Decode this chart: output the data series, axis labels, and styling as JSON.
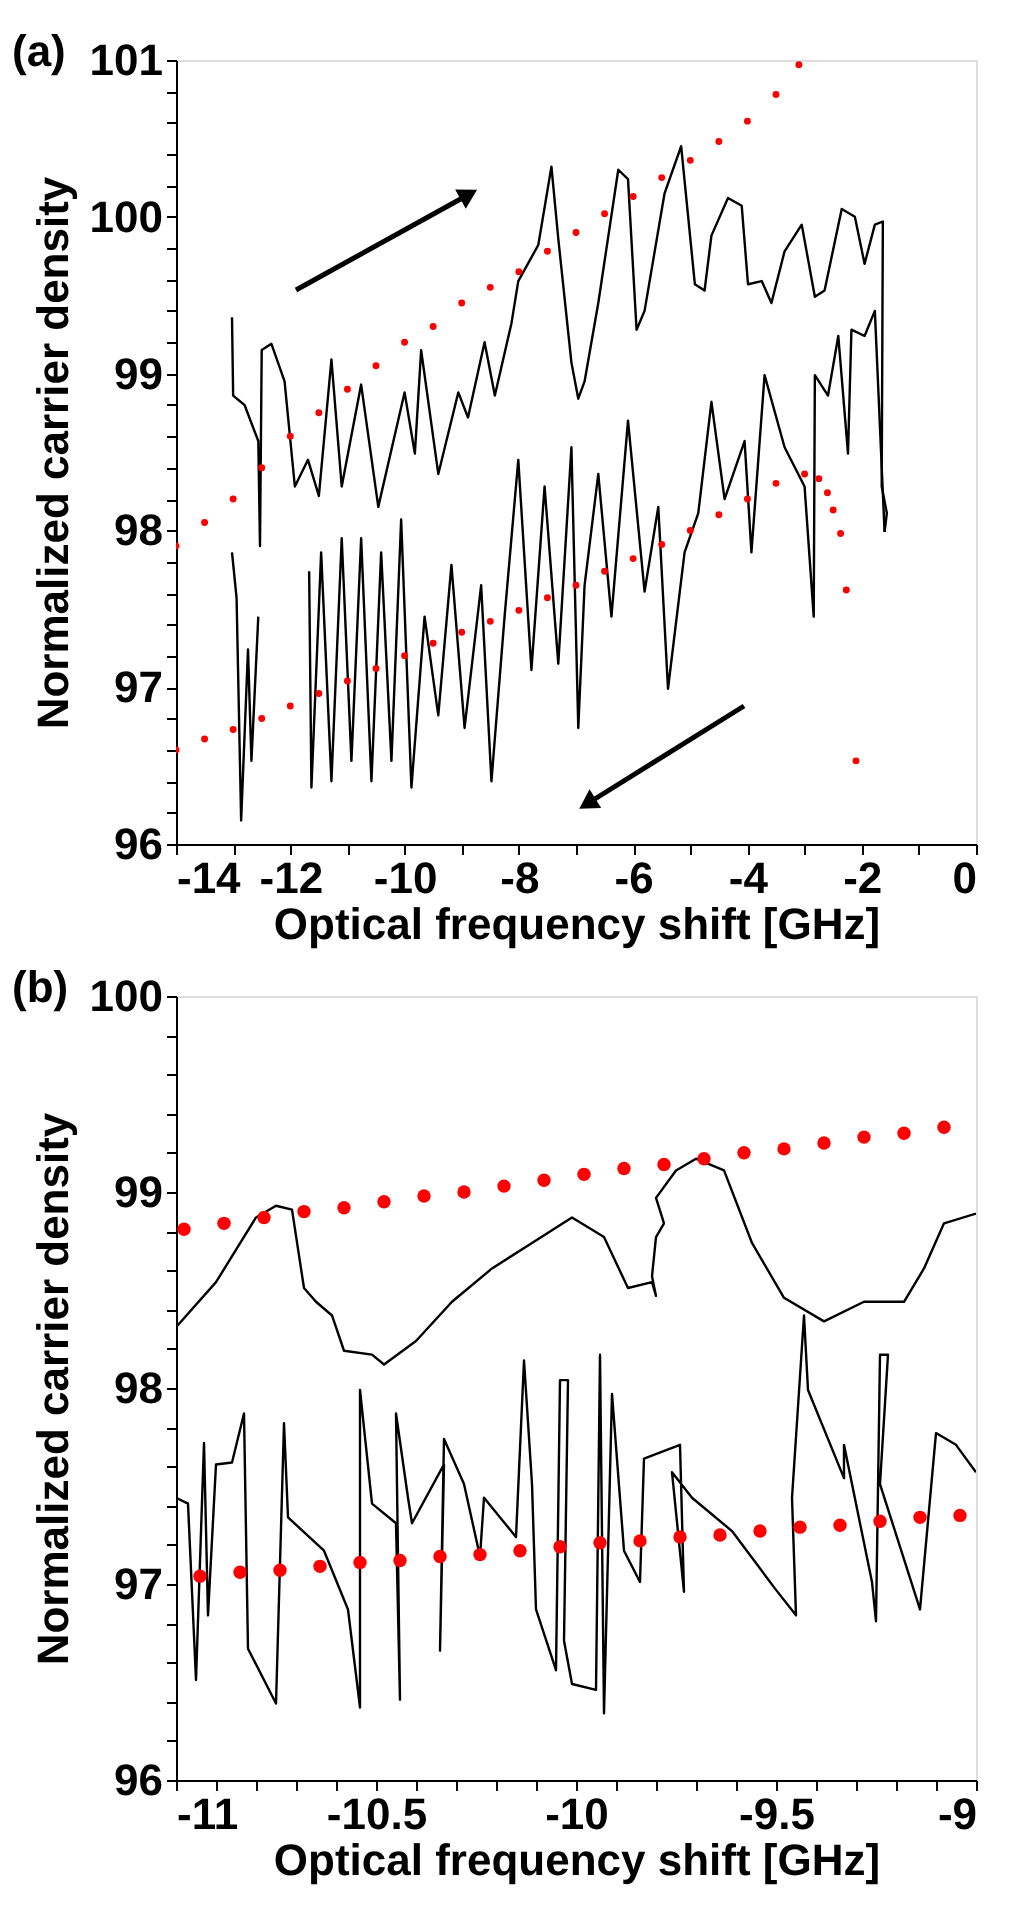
{
  "chart_data": [
    {
      "type": "line",
      "title": "(a)",
      "xlabel": "Optical frequency shift [GHz]",
      "ylabel": "Normalized carrier density",
      "xlim": [
        -14,
        0
      ],
      "ylim": [
        96,
        101
      ],
      "xticks": [
        -14,
        {
          "value": -13,
          "label": null
        },
        -12,
        {
          "value": -11,
          "label": null
        },
        -10,
        {
          "value": -9,
          "label": null
        },
        -8,
        {
          "value": -7,
          "label": null
        },
        -6,
        {
          "value": -5,
          "label": null
        },
        -4,
        {
          "value": -3,
          "label": null
        },
        -2,
        {
          "value": -1,
          "label": null
        },
        0
      ],
      "yticks": [
        96,
        {
          "value": 96.2,
          "label": null
        },
        {
          "value": 96.4,
          "label": null
        },
        {
          "value": 96.6,
          "label": null
        },
        {
          "value": 96.8,
          "label": null
        },
        97,
        {
          "value": 97.2,
          "label": null
        },
        {
          "value": 97.4,
          "label": null
        },
        {
          "value": 97.6,
          "label": null
        },
        {
          "value": 97.8,
          "label": null
        },
        98,
        {
          "value": 98.2,
          "label": null
        },
        {
          "value": 98.4,
          "label": null
        },
        {
          "value": 98.6,
          "label": null
        },
        {
          "value": 98.8,
          "label": null
        },
        99,
        {
          "value": 99.2,
          "label": null
        },
        {
          "value": 99.4,
          "label": null
        },
        {
          "value": 99.6,
          "label": null
        },
        {
          "value": 99.8,
          "label": null
        },
        100,
        {
          "value": 100.2,
          "label": null
        },
        {
          "value": 100.4,
          "label": null
        },
        {
          "value": 100.6,
          "label": null
        },
        {
          "value": 100.8,
          "label": null
        },
        101
      ],
      "grid": false,
      "series": [
        {
          "color": "#000000",
          "x": [
            -13.02,
            -13,
            -12.8,
            -12.56,
            -12.53,
            -12.5,
            -12.33,
            -12.1,
            -11.92,
            -11.69,
            -11.5,
            -11.28,
            -11.1,
            -10.76,
            -10.46,
            -10,
            -9.82,
            -9.71,
            -9.41,
            -9.06,
            -8.89,
            -8.6,
            -8.42,
            -8.13,
            -8.01,
            -7.66,
            -7.43,
            -7.31,
            -7.08,
            -6.96,
            -6.85,
            -6.61,
            -6.26,
            -6.09,
            -5.94,
            -5.8,
            -5.45,
            -5.16,
            -4.92,
            -4.75,
            -4.63,
            -4.34,
            -4.1,
            -3.99,
            -3.75,
            -3.58,
            -3.35,
            -3.05,
            -2.82,
            -2.65,
            -2.35,
            -2.12,
            -1.95,
            -1.77,
            -1.63,
            -1.65,
            -1.56,
            -1.6
          ],
          "values": [
            99.36,
            98.86,
            98.8,
            98.57,
            97.9,
            99.15,
            99.19,
            98.95,
            98.28,
            98.45,
            98.22,
            99.09,
            98.28,
            98.93,
            98.15,
            98.88,
            98.49,
            99.15,
            98.36,
            98.88,
            98.72,
            99.2,
            98.86,
            99.32,
            99.59,
            99.82,
            100.32,
            99.86,
            99.07,
            98.84,
            98.95,
            99.45,
            100.3,
            100.24,
            99.28,
            99.4,
            100.15,
            100.45,
            99.57,
            99.53,
            99.88,
            100.12,
            100.07,
            99.57,
            99.59,
            99.45,
            99.78,
            99.95,
            99.49,
            99.53,
            100.05,
            100,
            99.7,
            99.95,
            99.97,
            98.28,
            98.11,
            97.99
          ]
        },
        {
          "color": "#000000",
          "x": [
            -1.6,
            -1.77,
            -1.95,
            -2.18,
            -2.24,
            -2.41,
            -2.59,
            -2.82,
            -2.84,
            -3,
            -3.35,
            -3.7,
            -3.93,
            -4.05,
            -4.4,
            -4.63,
            -4.86,
            -5.1,
            -5.39,
            -5.56,
            -5.8,
            -6.09,
            -6.38,
            -6.61,
            -6.85,
            -6.96,
            -7.08,
            -7.31,
            -7.55,
            -7.78,
            -8.01,
            -8.25,
            -8.48,
            -8.66,
            -8.95,
            -9.18,
            -9.41,
            -9.65,
            -9.88,
            -10.06,
            -10.23,
            -10.41,
            -10.58,
            -10.76,
            -10.93,
            -11.1,
            -11.28,
            -11.46,
            -11.63,
            -11.67
          ],
          "values": [
            97.99,
            99.4,
            99.24,
            99.28,
            98.49,
            99.24,
            98.86,
            98.99,
            97.45,
            98.28,
            98.53,
            98.99,
            97.86,
            98.57,
            98.2,
            98.82,
            98.11,
            97.86,
            96.99,
            98.15,
            97.61,
            98.7,
            97.45,
            98.36,
            97.65,
            96.74,
            98.53,
            97.15,
            98.28,
            97.11,
            98.45,
            97.45,
            96.4,
            97.65,
            96.74,
            97.78,
            96.82,
            97.45,
            96.36,
            98.07,
            96.53,
            97.86,
            96.4,
            97.95,
            96.53,
            97.95,
            96.4,
            97.86,
            96.36,
            97.74
          ]
        },
        {
          "color": "#000000",
          "x": [
            -12.56,
            -12.68,
            -12.74,
            -12.86,
            -12.94,
            -13.02
          ],
          "values": [
            97.45,
            96.53,
            97.24,
            96.15,
            97.57,
            97.86
          ]
        },
        {
          "type": "scatter",
          "color": "#ff0000",
          "marker": "circle",
          "x": [
            -14,
            -13.5,
            -13,
            -12.5,
            -12,
            -11.5,
            -11,
            -10.5,
            -10,
            -9.5,
            -9,
            -8.5,
            -8,
            -7.5,
            -7,
            -6.5,
            -6,
            -5.5,
            -5,
            -4.5,
            -4,
            -3.5,
            -3.1
          ],
          "values": [
            97.9,
            98.05,
            98.2,
            98.4,
            98.6,
            98.75,
            98.9,
            99.05,
            99.2,
            99.3,
            99.45,
            99.55,
            99.65,
            99.78,
            99.9,
            100.02,
            100.13,
            100.25,
            100.36,
            100.48,
            100.61,
            100.78,
            100.97
          ]
        },
        {
          "type": "scatter",
          "color": "#ff0000",
          "marker": "circle",
          "x": [
            -14,
            -13.5,
            -13,
            -12.5,
            -12,
            -11.5,
            -11,
            -10.5,
            -10,
            -9.5,
            -9,
            -8.5,
            -8,
            -7.5,
            -7,
            -6.5,
            -6,
            -5.5,
            -5,
            -4.5,
            -4,
            -3.5,
            -3,
            -2.75,
            -2.6,
            -2.5,
            -2.37,
            -2.27,
            -2.1
          ],
          "values": [
            96.6,
            96.67,
            96.73,
            96.8,
            96.88,
            96.96,
            97.04,
            97.12,
            97.2,
            97.28,
            97.35,
            97.42,
            97.49,
            97.57,
            97.65,
            97.74,
            97.82,
            97.91,
            98,
            98.1,
            98.2,
            98.3,
            98.36,
            98.33,
            98.24,
            98.13,
            97.98,
            97.62,
            96.53
          ]
        }
      ]
    },
    {
      "type": "line",
      "title": "(b)",
      "xlabel": "Optical frequency shift [GHz]",
      "ylabel": "Normalized carrier density",
      "xlim": [
        -11,
        -9
      ],
      "ylim": [
        96,
        100
      ],
      "xticks": [
        -11,
        {
          "value": -10.9,
          "label": null
        },
        {
          "value": -10.8,
          "label": null
        },
        {
          "value": -10.7,
          "label": null
        },
        {
          "value": -10.6,
          "label": null
        },
        -10.5,
        {
          "value": -10.4,
          "label": null
        },
        {
          "value": -10.3,
          "label": null
        },
        {
          "value": -10.2,
          "label": null
        },
        {
          "value": -10.1,
          "label": null
        },
        -10,
        {
          "value": -9.9,
          "label": null
        },
        {
          "value": -9.8,
          "label": null
        },
        {
          "value": -9.7,
          "label": null
        },
        {
          "value": -9.6,
          "label": null
        },
        -9.5,
        {
          "value": -9.4,
          "label": null
        },
        {
          "value": -9.3,
          "label": null
        },
        {
          "value": -9.2,
          "label": null
        },
        {
          "value": -9.1,
          "label": null
        },
        -9
      ],
      "yticks": [
        96,
        {
          "value": 96.2,
          "label": null
        },
        {
          "value": 96.4,
          "label": null
        },
        {
          "value": 96.6,
          "label": null
        },
        {
          "value": 96.8,
          "label": null
        },
        97,
        {
          "value": 97.2,
          "label": null
        },
        {
          "value": 97.4,
          "label": null
        },
        {
          "value": 97.6,
          "label": null
        },
        {
          "value": 97.8,
          "label": null
        },
        98,
        {
          "value": 98.2,
          "label": null
        },
        {
          "value": 98.4,
          "label": null
        },
        {
          "value": 98.6,
          "label": null
        },
        {
          "value": 98.8,
          "label": null
        },
        99,
        {
          "value": 99.2,
          "label": null
        },
        {
          "value": 99.4,
          "label": null
        },
        {
          "value": 99.6,
          "label": null
        },
        {
          "value": 99.8,
          "label": null
        },
        100
      ],
      "grid": false,
      "series": [
        {
          "color": "#000000",
          "x": [
            -11,
            -10.9,
            -10.8,
            -10.75,
            -10.71,
            -10.68,
            -10.65,
            -10.61,
            -10.58,
            -10.51,
            -10.48,
            -10.4,
            -10.31,
            -10.21,
            -10.11,
            -10.01,
            -9.93,
            -9.87,
            -9.81,
            -9.8,
            -9.81,
            -9.8,
            -9.78,
            -9.8,
            -9.75,
            -9.7,
            -9.63,
            -9.56,
            -9.48,
            -9.38,
            -9.28,
            -9.23,
            -9.18,
            -9.13,
            -9.08,
            -9
          ],
          "values": [
            98.31,
            98.54,
            98.87,
            98.93,
            98.91,
            98.51,
            98.44,
            98.37,
            98.19,
            98.17,
            98.12,
            98.24,
            98.44,
            98.61,
            98.74,
            98.87,
            98.77,
            98.51,
            98.54,
            98.47,
            98.57,
            98.77,
            98.84,
            98.97,
            99.11,
            99.17,
            99.11,
            98.74,
            98.46,
            98.34,
            98.44,
            98.44,
            98.44,
            98.61,
            98.84,
            98.89
          ]
        },
        {
          "color": "#000000",
          "x": [
            -11,
            -10.97,
            -10.95,
            -10.93,
            -10.92,
            -10.9,
            -10.86,
            -10.83,
            -10.82,
            -10.75,
            -10.73,
            -10.72,
            -10.63,
            -10.57,
            -10.54,
            -10.54,
            -10.51,
            -10.45,
            -10.44,
            -10.45,
            -10.42,
            -10.41,
            -10.33,
            -10.34,
            -10.33,
            -10.28,
            -10.24,
            -10.23,
            -10.15,
            -10.13,
            -10.11,
            -10.1,
            -10.05,
            -10.04,
            -10.02,
            -10.03,
            -10.01,
            -9.95,
            -9.94,
            -9.93,
            -9.91,
            -9.88,
            -9.84,
            -9.83,
            -9.74,
            -9.73,
            -9.76,
            -9.71,
            -9.61,
            -9.5,
            -9.45,
            -9.46,
            -9.43,
            -9.42,
            -9.33,
            -9.33,
            -9.26,
            -9.25,
            -9.24,
            -9.22,
            -9.24,
            -9.14,
            -9.1,
            -9.05,
            -9
          ],
          "values": [
            97.44,
            97.41,
            96.51,
            97.72,
            96.84,
            97.61,
            97.62,
            97.87,
            96.67,
            96.39,
            97.82,
            97.34,
            97.17,
            96.87,
            96.37,
            97.99,
            97.41,
            97.31,
            96.41,
            97.87,
            97.44,
            97.31,
            97.61,
            96.66,
            97.74,
            97.51,
            97.14,
            97.44,
            97.24,
            98.14,
            97.51,
            96.87,
            96.56,
            98.04,
            98.04,
            96.71,
            96.49,
            96.46,
            98.17,
            96.34,
            97.97,
            97.17,
            97.01,
            97.64,
            97.71,
            96.96,
            97.57,
            97.44,
            97.27,
            96.97,
            96.84,
            97.44,
            98.37,
            97.99,
            97.54,
            97.71,
            97.01,
            96.81,
            98.17,
            98.17,
            97.51,
            96.87,
            97.77,
            97.71,
            97.57
          ]
        },
        {
          "type": "scatter",
          "color": "#ff0000",
          "marker": "circle",
          "x": [
            -10.98,
            -10.88,
            -10.78,
            -10.68,
            -10.58,
            -10.48,
            -10.38,
            -10.28,
            -10.18,
            -10.08,
            -9.98,
            -9.88,
            -9.78,
            -9.68,
            -9.58,
            -9.48,
            -9.38,
            -9.28,
            -9.18,
            -9.08
          ],
          "values": [
            98.81,
            98.84,
            98.87,
            98.9,
            98.92,
            98.95,
            98.98,
            99,
            99.03,
            99.06,
            99.09,
            99.12,
            99.14,
            99.17,
            99.2,
            99.22,
            99.25,
            99.28,
            99.3,
            99.33
          ]
        },
        {
          "type": "scatter",
          "color": "#ff0000",
          "marker": "circle",
          "x": [
            -10.94,
            -10.84,
            -10.74,
            -10.64,
            -10.54,
            -10.44,
            -10.34,
            -10.24,
            -10.14,
            -10.04,
            -9.94,
            -9.84,
            -9.74,
            -9.64,
            -9.54,
            -9.44,
            -9.34,
            -9.24,
            -9.14,
            -9.04
          ],
          "values": [
            97.04,
            97.06,
            97.07,
            97.09,
            97.11,
            97.12,
            97.14,
            97.15,
            97.17,
            97.19,
            97.21,
            97.22,
            97.24,
            97.25,
            97.27,
            97.29,
            97.3,
            97.32,
            97.34,
            97.35
          ]
        }
      ]
    }
  ]
}
